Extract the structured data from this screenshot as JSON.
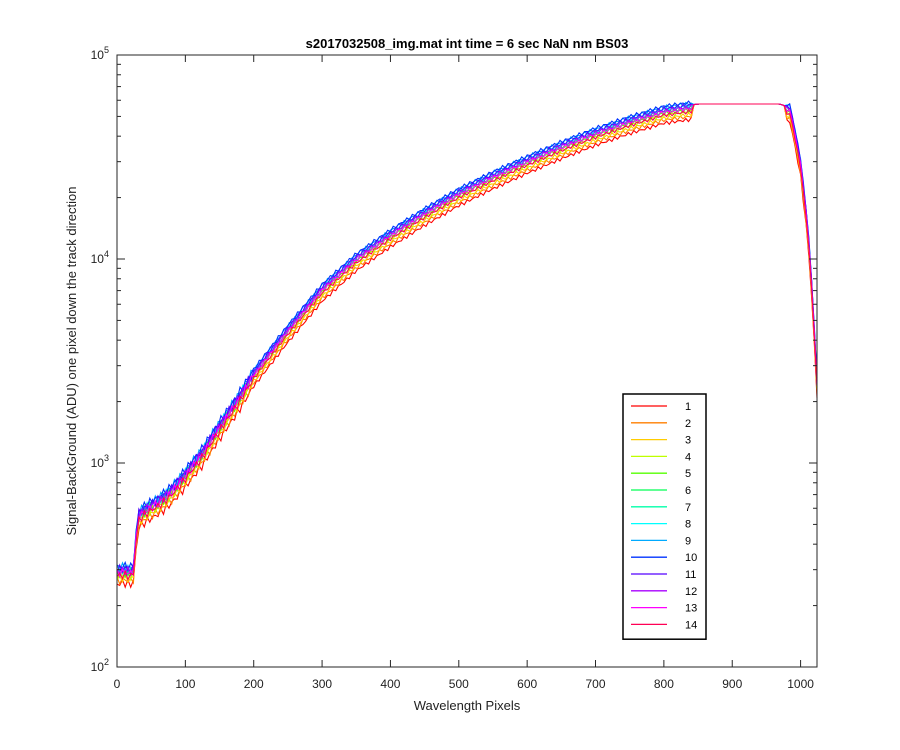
{
  "chart_data": {
    "type": "line",
    "title": "s2017032508_img.mat int time = 6 sec  NaN nm BS03",
    "xlabel": "Wavelength Pixels",
    "ylabel": "Signal-BackGround (ADU) one pixel down the track direction",
    "xlim": [
      0,
      1024
    ],
    "ylim": [
      100,
      100000
    ],
    "yscale": "log",
    "grid": false,
    "legend_position": "lower-right",
    "x_ticks": [
      0,
      100,
      200,
      300,
      400,
      500,
      600,
      700,
      800,
      900,
      1000
    ],
    "y_ticks": [
      {
        "value": 100,
        "base": "10",
        "exp": "2"
      },
      {
        "value": 1000,
        "base": "10",
        "exp": "3"
      },
      {
        "value": 10000,
        "base": "10",
        "exp": "4"
      },
      {
        "value": 100000,
        "base": "10",
        "exp": "5"
      }
    ],
    "x": [
      0,
      10,
      20,
      25,
      30,
      35,
      40,
      50,
      60,
      70,
      80,
      90,
      100,
      125,
      150,
      175,
      200,
      250,
      300,
      350,
      400,
      450,
      500,
      550,
      600,
      650,
      700,
      750,
      800,
      850,
      900,
      950,
      970,
      985,
      1000,
      1010,
      1015,
      1020,
      1024
    ],
    "reference_profile": [
      300,
      305,
      300,
      310,
      560,
      580,
      600,
      630,
      660,
      700,
      750,
      820,
      900,
      1150,
      1550,
      2050,
      2800,
      4600,
      7300,
      10300,
      13500,
      17200,
      21500,
      26000,
      31000,
      36500,
      42500,
      48500,
      54500,
      57500,
      57500,
      57500,
      57500,
      55000,
      30000,
      15000,
      9000,
      4500,
      2500
    ],
    "series": [
      {
        "name": "1",
        "color": "#ff0000",
        "scale": 0.85
      },
      {
        "name": "2",
        "color": "#ff7f00",
        "scale": 0.88
      },
      {
        "name": "3",
        "color": "#ffcc00",
        "scale": 0.9
      },
      {
        "name": "4",
        "color": "#bfff00",
        "scale": 0.93
      },
      {
        "name": "5",
        "color": "#55ff00",
        "scale": 0.95
      },
      {
        "name": "6",
        "color": "#00ff55",
        "scale": 0.97
      },
      {
        "name": "7",
        "color": "#00ffaa",
        "scale": 0.99
      },
      {
        "name": "8",
        "color": "#00ffff",
        "scale": 1.0
      },
      {
        "name": "9",
        "color": "#00aaff",
        "scale": 1.02
      },
      {
        "name": "10",
        "color": "#0033ff",
        "scale": 1.03
      },
      {
        "name": "11",
        "color": "#5500ff",
        "scale": 1.0
      },
      {
        "name": "12",
        "color": "#aa00ff",
        "scale": 0.98
      },
      {
        "name": "13",
        "color": "#ff00ff",
        "scale": 0.96
      },
      {
        "name": "14",
        "color": "#ff0055",
        "scale": 0.93
      }
    ]
  }
}
